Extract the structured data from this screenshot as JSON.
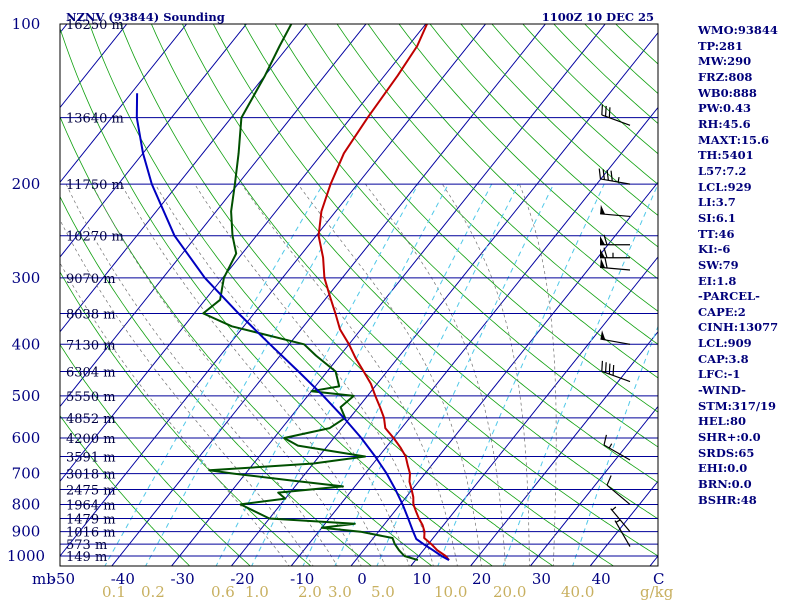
{
  "header": {
    "title": "NZNV (93844) Sounding",
    "time": "1100Z 10 DEC 25"
  },
  "indices": [
    "WMO:93844",
    "TP:281",
    "MW:290",
    "FRZ:808",
    "WB0:888",
    "PW:0.43",
    "RH:45.6",
    "MAXT:15.6",
    "TH:5401",
    "L57:7.2",
    "LCL:929",
    "LI:3.7",
    "SI:6.1",
    "TT:46",
    "KI:-6",
    "SW:79",
    "EI:1.8",
    "-PARCEL-",
    "CAPE:2",
    "CINH:13077",
    "LCL:909",
    "CAP:3.8",
    "LFC:-1",
    "-WIND-",
    "STM:317/19",
    "HEL:80",
    "SHR+:0.0",
    "SRDS:65",
    "EHI:0.0",
    "BRN:0.0",
    "BSHR:48"
  ],
  "colors": {
    "frame": "#000000",
    "isobar": "#00009a",
    "isotherm": "#0000a0",
    "dry_adiabat": "#10a010",
    "moist_adiabat": "#0000c0",
    "mixing_ratio": "#50c8e8",
    "temperature": "#c00000",
    "dewpoint": "#005000",
    "parcel": "#0000c0",
    "wind": "#000000",
    "axis_text": "#000080",
    "mixratio_text": "#c8b060"
  },
  "chart_data": {
    "type": "skew-t",
    "title": "NZNV (93844) Sounding",
    "xlabel": "C",
    "ylabel": "mb",
    "pressure_ticks": [
      100,
      200,
      300,
      400,
      500,
      600,
      700,
      800,
      900,
      1000
    ],
    "pressure_range": [
      100,
      1050
    ],
    "temperature_ticks": [
      -50,
      -40,
      -30,
      -20,
      -10,
      0,
      10,
      20,
      30,
      40
    ],
    "temperature_range": [
      -50,
      50
    ],
    "mixing_ratio_label": "g/kg",
    "mixing_ratio_ticks": [
      "0.1",
      "0.2",
      "0.6",
      "1.0",
      "2.0",
      "3.0",
      "5.0",
      "10.0",
      "20.0",
      "40.0"
    ],
    "height_labels": [
      {
        "p": 100,
        "label": "16250 m"
      },
      {
        "p": 150,
        "label": "13640 m"
      },
      {
        "p": 200,
        "label": "11750 m"
      },
      {
        "p": 250,
        "label": "10270 m"
      },
      {
        "p": 300,
        "label": "9070 m"
      },
      {
        "p": 350,
        "label": "8038 m"
      },
      {
        "p": 400,
        "label": "7130 m"
      },
      {
        "p": 450,
        "label": "6304 m"
      },
      {
        "p": 500,
        "label": "5550 m"
      },
      {
        "p": 550,
        "label": "4852 m"
      },
      {
        "p": 600,
        "label": "4200 m"
      },
      {
        "p": 650,
        "label": "3591 m"
      },
      {
        "p": 700,
        "label": "3018 m"
      },
      {
        "p": 750,
        "label": "2475 m"
      },
      {
        "p": 800,
        "label": "1964 m"
      },
      {
        "p": 850,
        "label": "1479 m"
      },
      {
        "p": 900,
        "label": "1016 m"
      },
      {
        "p": 950,
        "label": "573 m"
      },
      {
        "p": 1000,
        "label": "149 m"
      }
    ],
    "series": [
      {
        "name": "temperature",
        "points": [
          [
            1018,
            15.6
          ],
          [
            1000,
            14.5
          ],
          [
            975,
            12.3
          ],
          [
            950,
            10.5
          ],
          [
            925,
            8.5
          ],
          [
            900,
            7.7
          ],
          [
            875,
            6.5
          ],
          [
            850,
            5.0
          ],
          [
            825,
            3.6
          ],
          [
            800,
            2.2
          ],
          [
            775,
            1.2
          ],
          [
            750,
            -0.1
          ],
          [
            725,
            -1.5
          ],
          [
            700,
            -2.5
          ],
          [
            675,
            -4.0
          ],
          [
            650,
            -5.5
          ],
          [
            625,
            -7.6
          ],
          [
            600,
            -10.0
          ],
          [
            575,
            -12.7
          ],
          [
            550,
            -14.3
          ],
          [
            525,
            -16.4
          ],
          [
            500,
            -18.7
          ],
          [
            475,
            -21.0
          ],
          [
            450,
            -23.9
          ],
          [
            425,
            -27.0
          ],
          [
            400,
            -30.0
          ],
          [
            375,
            -33.5
          ],
          [
            350,
            -36.4
          ],
          [
            325,
            -39.6
          ],
          [
            300,
            -43.0
          ],
          [
            275,
            -45.9
          ],
          [
            250,
            -49.6
          ],
          [
            225,
            -52.4
          ],
          [
            200,
            -54.5
          ],
          [
            175,
            -56.4
          ],
          [
            150,
            -57.2
          ],
          [
            125,
            -57.8
          ],
          [
            110,
            -58.5
          ],
          [
            100,
            -59.8
          ]
        ]
      },
      {
        "name": "dewpoint",
        "points": [
          [
            1018,
            10.4
          ],
          [
            1000,
            7.6
          ],
          [
            975,
            5.9
          ],
          [
            950,
            4.4
          ],
          [
            925,
            3.2
          ],
          [
            900,
            -3.0
          ],
          [
            885,
            -10.0
          ],
          [
            870,
            -5.0
          ],
          [
            850,
            -20.0
          ],
          [
            800,
            -26.7
          ],
          [
            780,
            -20.0
          ],
          [
            760,
            -22.0
          ],
          [
            740,
            -12.0
          ],
          [
            720,
            -22.0
          ],
          [
            700,
            -32.0
          ],
          [
            690,
            -36.5
          ],
          [
            670,
            -20.0
          ],
          [
            650,
            -12.3
          ],
          [
            620,
            -25.0
          ],
          [
            600,
            -28.3
          ],
          [
            575,
            -22.0
          ],
          [
            550,
            -20.8
          ],
          [
            525,
            -23.0
          ],
          [
            500,
            -22.3
          ],
          [
            490,
            -30.0
          ],
          [
            480,
            -26.0
          ],
          [
            450,
            -28.6
          ],
          [
            420,
            -34.0
          ],
          [
            400,
            -37.5
          ],
          [
            370,
            -52.0
          ],
          [
            350,
            -58.5
          ],
          [
            330,
            -57.5
          ],
          [
            300,
            -59.8
          ],
          [
            270,
            -61.0
          ],
          [
            250,
            -64.0
          ],
          [
            225,
            -67.5
          ],
          [
            200,
            -70.5
          ],
          [
            175,
            -74.0
          ],
          [
            150,
            -78.3
          ],
          [
            125,
            -80.0
          ],
          [
            110,
            -81.5
          ],
          [
            100,
            -82.5
          ]
        ]
      },
      {
        "name": "parcel",
        "points": [
          [
            1018,
            15.6
          ],
          [
            1000,
            13.8
          ],
          [
            975,
            11.6
          ],
          [
            950,
            9.2
          ],
          [
            929,
            7.3
          ],
          [
            900,
            5.8
          ],
          [
            850,
            3.2
          ],
          [
            800,
            0.4
          ],
          [
            750,
            -2.8
          ],
          [
            700,
            -6.4
          ],
          [
            650,
            -10.6
          ],
          [
            600,
            -15.4
          ],
          [
            550,
            -21.0
          ],
          [
            500,
            -27.4
          ],
          [
            450,
            -34.8
          ],
          [
            400,
            -43.2
          ],
          [
            350,
            -52.6
          ],
          [
            300,
            -63.0
          ],
          [
            250,
            -73.7
          ],
          [
            200,
            -84.4
          ],
          [
            175,
            -90.0
          ],
          [
            150,
            -95.8
          ],
          [
            135,
            -99.0
          ]
        ]
      }
    ],
    "wind_barbs": [
      {
        "p": 155,
        "dir": 290,
        "kt": 30
      },
      {
        "p": 200,
        "dir": 280,
        "kt": 45
      },
      {
        "p": 230,
        "dir": 275,
        "kt": 50
      },
      {
        "p": 260,
        "dir": 270,
        "kt": 60
      },
      {
        "p": 275,
        "dir": 270,
        "kt": 65
      },
      {
        "p": 290,
        "dir": 275,
        "kt": 60
      },
      {
        "p": 400,
        "dir": 280,
        "kt": 50
      },
      {
        "p": 470,
        "dir": 290,
        "kt": 40
      },
      {
        "p": 660,
        "dir": 300,
        "kt": 15
      },
      {
        "p": 800,
        "dir": 310,
        "kt": 10
      },
      {
        "p": 900,
        "dir": 320,
        "kt": 5
      },
      {
        "p": 960,
        "dir": 330,
        "kt": 5
      }
    ]
  }
}
